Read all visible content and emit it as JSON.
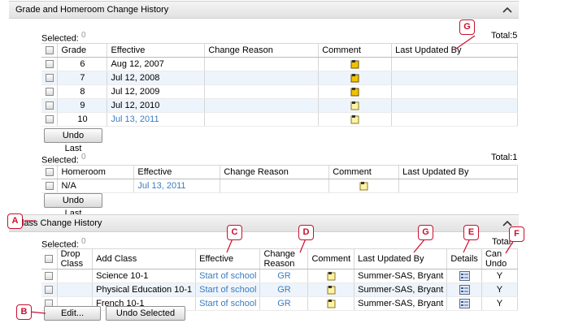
{
  "grade_section": {
    "title": "Grade and Homeroom Change History",
    "selected_label": "Selected:",
    "selected_count": "0",
    "total_label": "Total:5",
    "columns": [
      "Grade",
      "Effective",
      "Change Reason",
      "Comment",
      "Last Updated By"
    ],
    "rows": [
      {
        "grade": "6",
        "effective": "Aug 12, 2007",
        "reason": "",
        "updated_by": ""
      },
      {
        "grade": "7",
        "effective": "Jul 12, 2008",
        "reason": "",
        "updated_by": ""
      },
      {
        "grade": "8",
        "effective": "Jul 12, 2009",
        "reason": "",
        "updated_by": ""
      },
      {
        "grade": "9",
        "effective": "Jul 12, 2010",
        "reason": "",
        "updated_by": ""
      },
      {
        "grade": "10",
        "effective": "Jul 13, 2011",
        "reason": "",
        "updated_by": ""
      }
    ],
    "undo_button": "Undo Last"
  },
  "homeroom_section": {
    "selected_label": "Selected:",
    "selected_count": "0",
    "total_label": "Total:1",
    "columns": [
      "Homeroom",
      "Effective",
      "Change Reason",
      "Comment",
      "Last Updated By"
    ],
    "rows": [
      {
        "homeroom": "N/A",
        "effective": "Jul 13, 2011",
        "reason": "",
        "updated_by": ""
      }
    ],
    "undo_button": "Undo Last"
  },
  "class_section": {
    "title": "Class Change History",
    "selected_label": "Selected:",
    "selected_count": "0",
    "total_label": "Total:",
    "columns": [
      "Drop Class",
      "Add Class",
      "Effective",
      "Change Reason",
      "Comment",
      "Last Updated By",
      "Details",
      "Can Undo"
    ],
    "rows": [
      {
        "drop": "",
        "add": "Science 10-1",
        "effective": "Start of school",
        "reason": "GR",
        "updated_by": "Summer-SAS, Bryant",
        "can_undo": "Y"
      },
      {
        "drop": "",
        "add": "Physical Education 10-1",
        "effective": "Start of school",
        "reason": "GR",
        "updated_by": "Summer-SAS, Bryant",
        "can_undo": "Y"
      },
      {
        "drop": "",
        "add": "French 10-1",
        "effective": "Start of school",
        "reason": "GR",
        "updated_by": "Summer-SAS, Bryant",
        "can_undo": "Y"
      }
    ],
    "edit_button": "Edit...",
    "undo_selected_button": "Undo Selected"
  },
  "callouts": {
    "a": "A",
    "b": "B",
    "c": "C",
    "d": "D",
    "e": "E",
    "f": "F",
    "g1": "G",
    "g2": "G"
  },
  "colors": {
    "callout": "#c8102e",
    "link": "#3a7cc0",
    "alt_row": "#eef4fb"
  },
  "icons": {
    "comment": "note-icon",
    "details": "details-icon",
    "collapse": "chevron-up-icon"
  }
}
